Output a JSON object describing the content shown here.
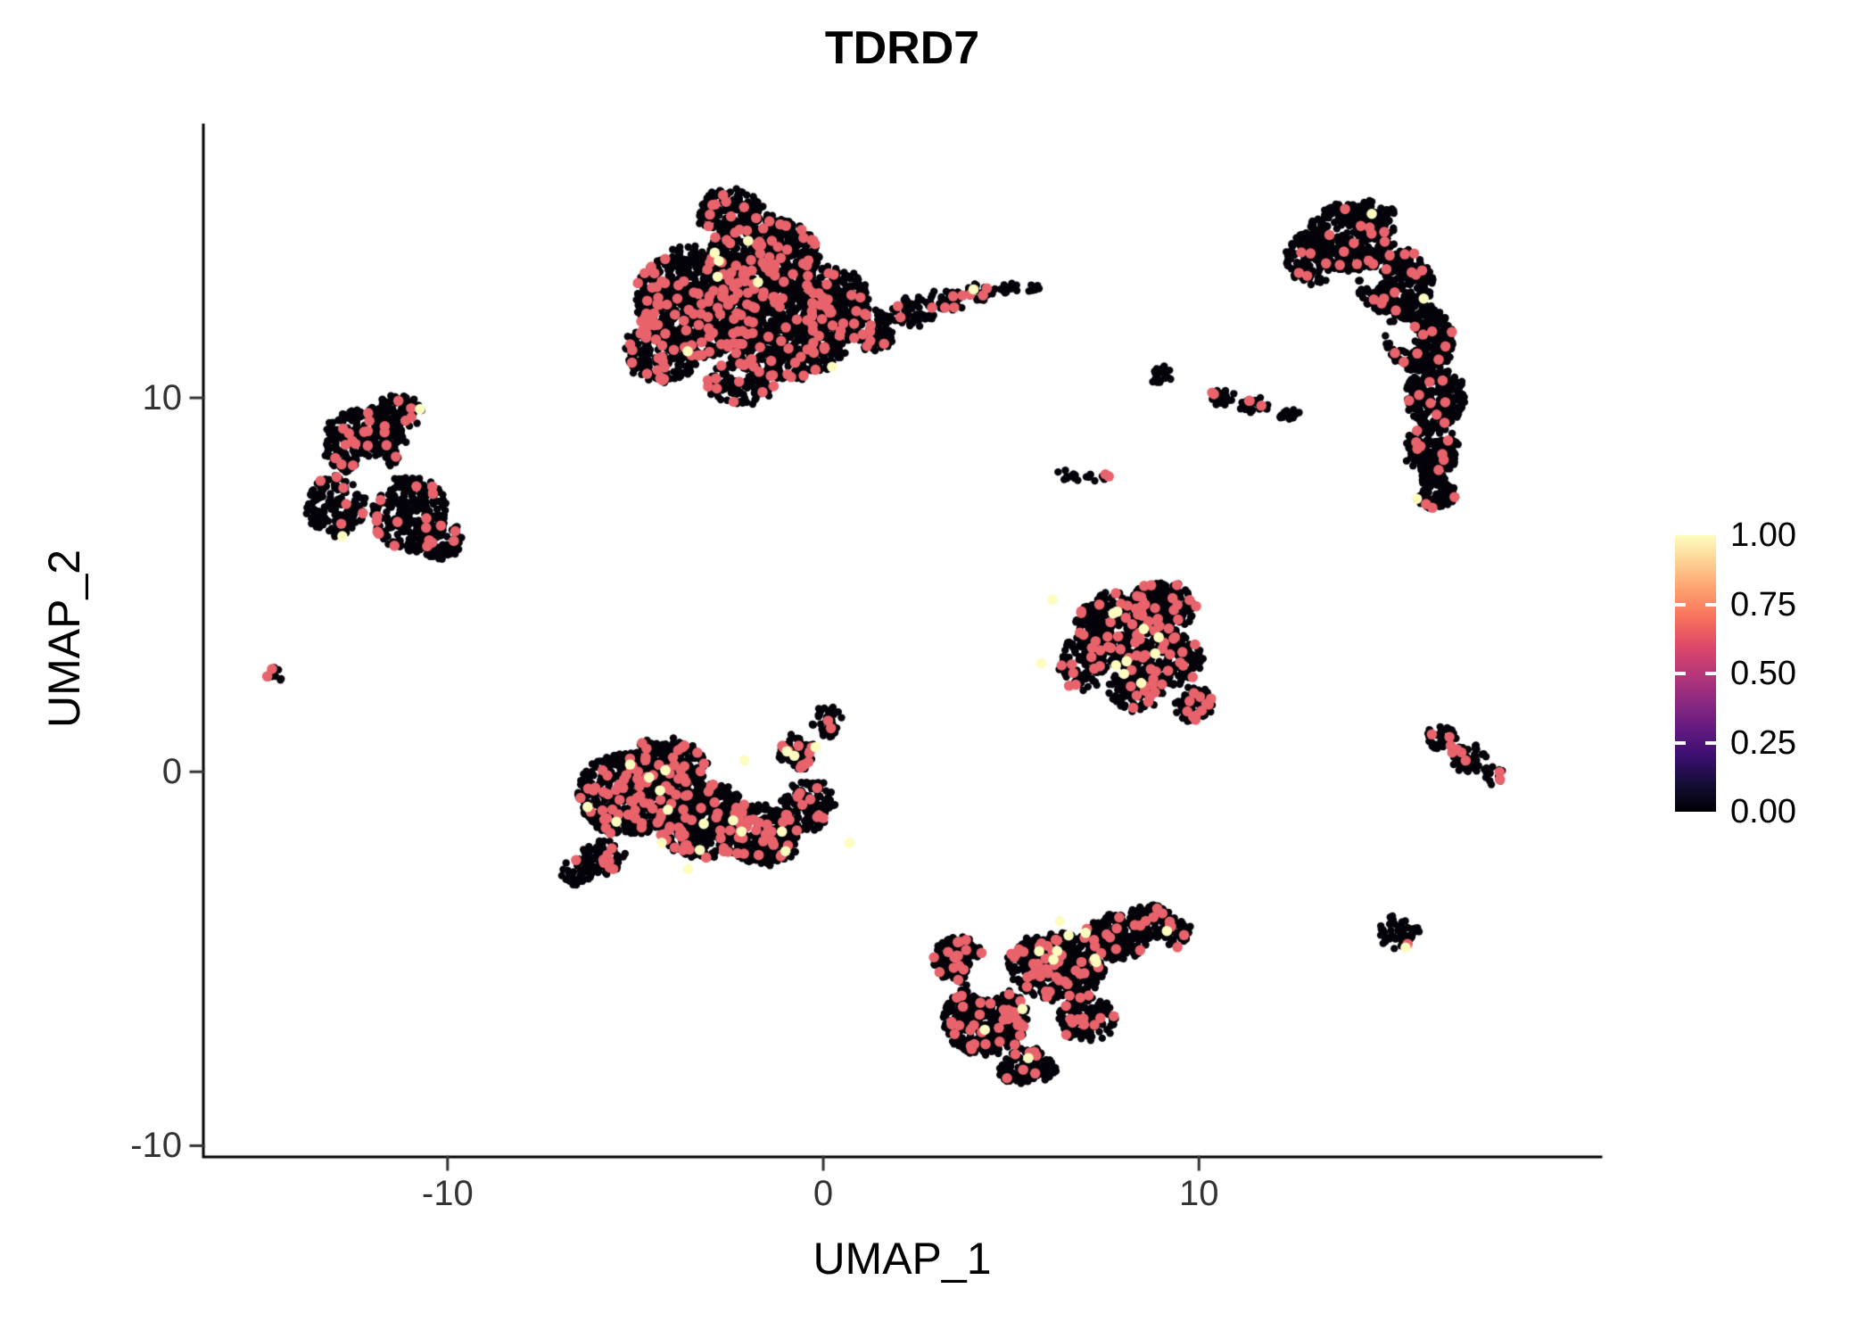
{
  "chart_data": {
    "type": "scatter",
    "title": "TDRD7",
    "xlabel": "UMAP_1",
    "ylabel": "UMAP_2",
    "xlim": [
      -16.5,
      20.7
    ],
    "ylim": [
      -10.3,
      17.3
    ],
    "xticks": [
      {
        "label": "-10",
        "v": -10
      },
      {
        "label": "0",
        "v": 0
      },
      {
        "label": "10",
        "v": 10
      }
    ],
    "yticks": [
      {
        "label": "-10",
        "v": -10
      },
      {
        "label": "0",
        "v": 0
      },
      {
        "label": "10",
        "v": 10
      }
    ],
    "legend_ticks": [
      {
        "label": "1.00",
        "v": 1.0
      },
      {
        "label": "0.75",
        "v": 0.75
      },
      {
        "label": "0.50",
        "v": 0.5
      },
      {
        "label": "0.25",
        "v": 0.25
      },
      {
        "label": "0.00",
        "v": 0.0
      }
    ],
    "legend_gradient": [
      "#000004",
      "#140e36",
      "#3b0f70",
      "#641a80",
      "#8c2981",
      "#b73779",
      "#de4968",
      "#f7705c",
      "#fe9f6d",
      "#fecf92",
      "#fcfdbf"
    ],
    "point_colors": {
      "zero": "#05030a",
      "mid": "#e8636b",
      "high": "#fcfdbf"
    },
    "clusters": [
      {
        "name": "top-large",
        "frac_mid": 0.085,
        "frac_high": 0.003,
        "components": [
          {
            "x": -3.3,
            "y": 12.6,
            "a": 1.7,
            "b": 1.5,
            "n": 850
          },
          {
            "x": -1.6,
            "y": 13.7,
            "a": 1.5,
            "b": 1.2,
            "n": 700
          },
          {
            "x": -1.0,
            "y": 11.6,
            "a": 1.7,
            "b": 1.1,
            "n": 600
          },
          {
            "x": -4.3,
            "y": 11.2,
            "a": 1.0,
            "b": 0.8,
            "n": 220
          },
          {
            "x": -2.5,
            "y": 15.0,
            "a": 0.9,
            "b": 0.6,
            "n": 150
          },
          {
            "x": -2.2,
            "y": 10.4,
            "a": 0.9,
            "b": 0.6,
            "n": 120
          },
          {
            "x": 0.3,
            "y": 12.6,
            "a": 0.9,
            "b": 0.9,
            "n": 250
          },
          {
            "x": 1.3,
            "y": 11.8,
            "a": 0.6,
            "b": 0.6,
            "n": 100
          },
          {
            "x": 2.4,
            "y": 12.3,
            "a": 0.6,
            "b": 0.4,
            "n": 60
          },
          {
            "x": 3.3,
            "y": 12.6,
            "a": 0.5,
            "b": 0.3,
            "n": 45
          },
          {
            "x": 4.2,
            "y": 12.8,
            "a": 0.4,
            "b": 0.25,
            "n": 28
          },
          {
            "x": 4.9,
            "y": 12.9,
            "a": 0.25,
            "b": 0.18,
            "n": 12
          },
          {
            "x": 5.6,
            "y": 12.9,
            "a": 0.15,
            "b": 0.12,
            "n": 6
          }
        ],
        "holes": [
          {
            "x": 0.3,
            "y": 13.9,
            "r": 0.35
          }
        ]
      },
      {
        "name": "left",
        "frac_mid": 0.05,
        "frac_high": 0.003,
        "components": [
          {
            "x": -12.2,
            "y": 8.8,
            "a": 1.1,
            "b": 0.9,
            "n": 280
          },
          {
            "x": -11.0,
            "y": 6.9,
            "a": 1.0,
            "b": 1.0,
            "n": 280
          },
          {
            "x": -13.0,
            "y": 7.1,
            "a": 0.8,
            "b": 0.8,
            "n": 160
          },
          {
            "x": -11.4,
            "y": 9.6,
            "a": 0.7,
            "b": 0.5,
            "n": 90
          },
          {
            "x": -10.2,
            "y": 6.2,
            "a": 0.6,
            "b": 0.55,
            "n": 80
          }
        ],
        "holes": [
          {
            "x": -12.0,
            "y": 7.9,
            "r": 0.55
          }
        ]
      },
      {
        "name": "tiny-left",
        "frac_mid": 0.1,
        "frac_high": 0,
        "components": [
          {
            "x": -14.6,
            "y": 2.55,
            "a": 0.22,
            "b": 0.2,
            "n": 10
          }
        ],
        "holes": []
      },
      {
        "name": "center-left",
        "frac_mid": 0.1,
        "frac_high": 0.007,
        "components": [
          {
            "x": -5.2,
            "y": -0.6,
            "a": 1.3,
            "b": 1.1,
            "n": 550
          },
          {
            "x": -3.2,
            "y": -1.3,
            "a": 1.3,
            "b": 1.0,
            "n": 500
          },
          {
            "x": -4.2,
            "y": 0.2,
            "a": 1.1,
            "b": 0.7,
            "n": 250
          },
          {
            "x": -1.6,
            "y": -1.7,
            "a": 1.0,
            "b": 0.8,
            "n": 280
          },
          {
            "x": -0.4,
            "y": -0.9,
            "a": 0.7,
            "b": 0.7,
            "n": 140
          },
          {
            "x": -0.7,
            "y": 0.5,
            "a": 0.5,
            "b": 0.5,
            "n": 70
          },
          {
            "x": 0.1,
            "y": 1.3,
            "a": 0.4,
            "b": 0.45,
            "n": 45
          },
          {
            "x": -5.9,
            "y": -2.3,
            "a": 0.6,
            "b": 0.45,
            "n": 80
          },
          {
            "x": -6.5,
            "y": -2.7,
            "a": 0.5,
            "b": 0.35,
            "n": 45
          }
        ],
        "holes": [
          {
            "x": -2.6,
            "y": 0.1,
            "r": 0.3
          }
        ]
      },
      {
        "name": "mid-right-triangle",
        "frac_mid": 0.09,
        "frac_high": 0.005,
        "components": [
          {
            "x": 7.9,
            "y": 3.8,
            "a": 1.2,
            "b": 1.0,
            "n": 420
          },
          {
            "x": 9.0,
            "y": 4.4,
            "a": 0.9,
            "b": 0.7,
            "n": 200
          },
          {
            "x": 9.3,
            "y": 3.0,
            "a": 0.8,
            "b": 0.7,
            "n": 170
          },
          {
            "x": 8.3,
            "y": 2.2,
            "a": 0.7,
            "b": 0.6,
            "n": 140
          },
          {
            "x": 9.9,
            "y": 1.8,
            "a": 0.5,
            "b": 0.5,
            "n": 70
          },
          {
            "x": 6.9,
            "y": 2.9,
            "a": 0.6,
            "b": 0.7,
            "n": 110
          }
        ],
        "holes": []
      },
      {
        "name": "bottom-center",
        "frac_mid": 0.085,
        "frac_high": 0.004,
        "components": [
          {
            "x": 4.3,
            "y": -6.6,
            "a": 1.1,
            "b": 1.0,
            "n": 420
          },
          {
            "x": 6.2,
            "y": -5.2,
            "a": 1.3,
            "b": 0.9,
            "n": 470
          },
          {
            "x": 7.8,
            "y": -4.4,
            "a": 0.9,
            "b": 0.6,
            "n": 200
          },
          {
            "x": 8.7,
            "y": -4.0,
            "a": 0.6,
            "b": 0.45,
            "n": 90
          },
          {
            "x": 9.4,
            "y": -4.3,
            "a": 0.45,
            "b": 0.35,
            "n": 50
          },
          {
            "x": 3.6,
            "y": -5.0,
            "a": 0.7,
            "b": 0.6,
            "n": 140
          },
          {
            "x": 5.4,
            "y": -7.9,
            "a": 0.8,
            "b": 0.5,
            "n": 120
          },
          {
            "x": 7.0,
            "y": -6.6,
            "a": 0.8,
            "b": 0.6,
            "n": 140
          }
        ],
        "holes": [
          {
            "x": 4.4,
            "y": -5.5,
            "r": 0.6
          }
        ]
      },
      {
        "name": "right-crescent",
        "frac_mid": 0.04,
        "frac_high": 0.002,
        "components": [
          {
            "x": 14.0,
            "y": 14.3,
            "a": 1.2,
            "b": 0.9,
            "n": 330
          },
          {
            "x": 14.5,
            "y": 14.9,
            "a": 0.7,
            "b": 0.4,
            "n": 70
          },
          {
            "x": 13.0,
            "y": 13.7,
            "a": 0.7,
            "b": 0.7,
            "n": 130
          },
          {
            "x": 15.2,
            "y": 13.1,
            "a": 1.0,
            "b": 0.9,
            "n": 280
          },
          {
            "x": 15.9,
            "y": 11.6,
            "a": 0.9,
            "b": 0.9,
            "n": 260
          },
          {
            "x": 16.3,
            "y": 10.0,
            "a": 0.8,
            "b": 0.8,
            "n": 230
          },
          {
            "x": 16.2,
            "y": 8.6,
            "a": 0.7,
            "b": 0.7,
            "n": 170
          },
          {
            "x": 16.3,
            "y": 7.5,
            "a": 0.5,
            "b": 0.5,
            "n": 90
          }
        ],
        "holes": [
          {
            "x": 15.4,
            "y": 11.7,
            "r": 0.4
          },
          {
            "x": 14.6,
            "y": 13.2,
            "r": 0.3
          }
        ]
      },
      {
        "name": "small-blob",
        "frac_mid": 0.05,
        "frac_high": 0,
        "components": [
          {
            "x": 9.0,
            "y": 10.6,
            "a": 0.3,
            "b": 0.25,
            "n": 22
          }
        ],
        "holes": []
      },
      {
        "name": "small-streak",
        "frac_mid": 0.06,
        "frac_high": 0,
        "components": [
          {
            "x": 10.6,
            "y": 10.05,
            "a": 0.35,
            "b": 0.22,
            "n": 28
          },
          {
            "x": 11.5,
            "y": 9.8,
            "a": 0.45,
            "b": 0.18,
            "n": 32
          },
          {
            "x": 12.4,
            "y": 9.55,
            "a": 0.35,
            "b": 0.15,
            "n": 20
          }
        ],
        "holes": []
      },
      {
        "name": "tiny-streak",
        "frac_mid": 0.05,
        "frac_high": 0,
        "components": [
          {
            "x": 6.6,
            "y": 7.95,
            "a": 0.35,
            "b": 0.15,
            "n": 13
          },
          {
            "x": 7.3,
            "y": 7.9,
            "a": 0.3,
            "b": 0.12,
            "n": 9
          }
        ],
        "holes": []
      },
      {
        "name": "right-small",
        "frac_mid": 0.1,
        "frac_high": 0,
        "components": [
          {
            "x": 16.4,
            "y": 0.9,
            "a": 0.45,
            "b": 0.35,
            "n": 32
          },
          {
            "x": 17.2,
            "y": 0.35,
            "a": 0.55,
            "b": 0.35,
            "n": 42
          },
          {
            "x": 17.8,
            "y": -0.05,
            "a": 0.3,
            "b": 0.25,
            "n": 16
          }
        ],
        "holes": []
      },
      {
        "name": "small-round",
        "frac_mid": 0.02,
        "frac_high": 0,
        "components": [
          {
            "x": 15.3,
            "y": -4.3,
            "a": 0.55,
            "b": 0.5,
            "n": 48
          }
        ],
        "holes": []
      }
    ],
    "highlight_points": [
      {
        "x": 4.0,
        "y": 12.9,
        "level": "high"
      },
      {
        "x": -2.0,
        "y": 14.2,
        "level": "high"
      },
      {
        "x": -12.8,
        "y": 6.3,
        "level": "high"
      },
      {
        "x": -14.8,
        "y": 2.55,
        "level": "mid"
      },
      {
        "x": -4.3,
        "y": -1.9,
        "level": "high"
      },
      {
        "x": -2.4,
        "y": -1.3,
        "level": "high"
      },
      {
        "x": -1.1,
        "y": -1.6,
        "level": "high"
      },
      {
        "x": -2.1,
        "y": 0.3,
        "level": "high"
      },
      {
        "x": -3.6,
        "y": -2.6,
        "level": "high"
      },
      {
        "x": 0.7,
        "y": -1.9,
        "level": "high"
      },
      {
        "x": 6.1,
        "y": 4.6,
        "level": "high"
      },
      {
        "x": 5.8,
        "y": 2.9,
        "level": "high"
      },
      {
        "x": 6.3,
        "y": -4.0,
        "level": "high"
      },
      {
        "x": 4.3,
        "y": -6.9,
        "level": "high"
      },
      {
        "x": 15.8,
        "y": 7.3,
        "level": "high"
      },
      {
        "x": 15.5,
        "y": -4.7,
        "level": "high"
      },
      {
        "x": 10.4,
        "y": 10.1,
        "level": "mid"
      },
      {
        "x": 7.6,
        "y": 7.9,
        "level": "mid"
      },
      {
        "x": 16.2,
        "y": 1.0,
        "level": "mid"
      },
      {
        "x": 16.7,
        "y": 0.7,
        "level": "mid"
      },
      {
        "x": 17.1,
        "y": 0.3,
        "level": "mid"
      }
    ]
  }
}
